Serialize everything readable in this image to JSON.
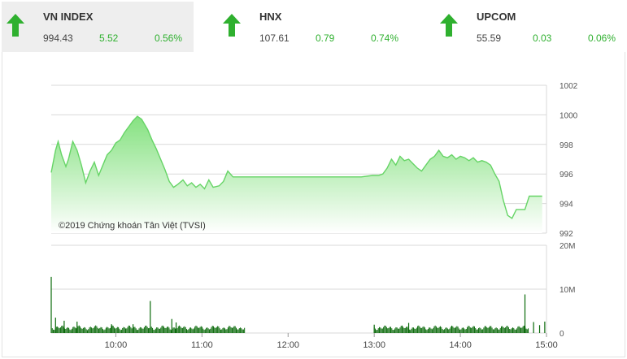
{
  "indices": [
    {
      "name": "VN INDEX",
      "value": "994.43",
      "change": "5.52",
      "percent": "0.56%",
      "direction": "up",
      "active": true
    },
    {
      "name": "HNX",
      "value": "107.61",
      "change": "0.79",
      "percent": "0.74%",
      "direction": "up",
      "active": false
    },
    {
      "name": "UPCOM",
      "value": "55.59",
      "change": "0.03",
      "percent": "0.06%",
      "direction": "up",
      "active": false
    }
  ],
  "colors": {
    "up": "#2fb02f",
    "area_top": "#7fe07a",
    "area_bottom": "#ffffff",
    "line": "#66d466",
    "volume": "#0a6a0a",
    "grid": "#d9d9d9"
  },
  "chart_data": [
    {
      "type": "area",
      "copyright": "©2019 Chứng khoán Tân Việt (TVSI)",
      "y_ticks": [
        "1002",
        "1000",
        "998",
        "996",
        "994",
        "992"
      ],
      "ylim": [
        992,
        1002
      ],
      "x_ticks": [
        "10:00",
        "11:00",
        "12:00",
        "13:00",
        "14:00",
        "15:00"
      ],
      "x_tick_hours": [
        10,
        11,
        12,
        13,
        14,
        15
      ],
      "xlim": [
        9.25,
        15.0
      ],
      "x": [
        9.25,
        9.3,
        9.33,
        9.37,
        9.42,
        9.45,
        9.5,
        9.55,
        9.6,
        9.65,
        9.7,
        9.75,
        9.8,
        9.85,
        9.9,
        9.95,
        10.0,
        10.05,
        10.1,
        10.15,
        10.2,
        10.25,
        10.3,
        10.33,
        10.37,
        10.42,
        10.47,
        10.52,
        10.57,
        10.62,
        10.67,
        10.72,
        10.78,
        10.83,
        10.88,
        10.93,
        10.98,
        11.03,
        11.08,
        11.13,
        11.2,
        11.25,
        11.3,
        11.33,
        11.36,
        11.4,
        11.45,
        12.0,
        12.5,
        12.85,
        12.98,
        13.05,
        13.1,
        13.15,
        13.2,
        13.25,
        13.3,
        13.35,
        13.4,
        13.45,
        13.5,
        13.55,
        13.6,
        13.65,
        13.7,
        13.75,
        13.8,
        13.85,
        13.9,
        13.95,
        14.0,
        14.05,
        14.1,
        14.15,
        14.2,
        14.25,
        14.3,
        14.35,
        14.4,
        14.45,
        14.5,
        14.55,
        14.6,
        14.65,
        14.75,
        14.8,
        14.95
      ],
      "y": [
        996.1,
        997.6,
        998.2,
        997.3,
        996.5,
        997.0,
        998.2,
        997.6,
        996.6,
        995.4,
        996.2,
        996.8,
        995.9,
        996.6,
        997.3,
        997.6,
        998.1,
        998.3,
        998.8,
        999.2,
        999.6,
        999.9,
        999.7,
        999.4,
        999.0,
        998.3,
        997.7,
        997.0,
        996.3,
        995.5,
        995.1,
        995.3,
        995.6,
        995.2,
        995.4,
        995.1,
        995.3,
        995.0,
        995.6,
        995.1,
        995.2,
        995.5,
        996.2,
        996.0,
        995.8,
        995.8,
        995.8,
        995.8,
        995.8,
        995.8,
        995.9,
        995.9,
        996.0,
        996.4,
        997.0,
        996.6,
        997.2,
        996.9,
        997.0,
        996.7,
        996.4,
        996.2,
        996.6,
        997.0,
        997.2,
        997.6,
        997.2,
        997.1,
        997.3,
        997.0,
        997.2,
        997.1,
        996.9,
        997.1,
        996.8,
        996.9,
        996.8,
        996.6,
        996.0,
        995.5,
        994.2,
        993.2,
        993.0,
        993.6,
        993.6,
        994.5,
        994.5
      ]
    },
    {
      "type": "bar",
      "y_ticks": [
        "20M",
        "10M",
        "0"
      ],
      "ylim_millions": [
        0,
        20
      ],
      "xlim": [
        9.25,
        15.0
      ],
      "morning_session": [
        9.25,
        11.5
      ],
      "afternoon_session": [
        13.0,
        14.8
      ],
      "base_volume_millions": 1.2,
      "spikes": [
        {
          "time": 9.25,
          "volume_millions": 12.8
        },
        {
          "time": 9.3,
          "volume_millions": 3.5
        },
        {
          "time": 9.4,
          "volume_millions": 2.8
        },
        {
          "time": 9.55,
          "volume_millions": 2.6
        },
        {
          "time": 9.95,
          "volume_millions": 2.0
        },
        {
          "time": 10.2,
          "volume_millions": 2.0
        },
        {
          "time": 10.4,
          "volume_millions": 7.3
        },
        {
          "time": 10.65,
          "volume_millions": 3.2
        },
        {
          "time": 10.7,
          "volume_millions": 2.4
        },
        {
          "time": 13.0,
          "volume_millions": 1.9
        },
        {
          "time": 13.4,
          "volume_millions": 2.3
        },
        {
          "time": 14.75,
          "volume_millions": 8.8
        },
        {
          "time": 14.85,
          "volume_millions": 2.5
        }
      ],
      "closing_spikes": [
        {
          "time": 14.92,
          "volume_millions": 1.8
        },
        {
          "time": 14.98,
          "volume_millions": 2.6
        }
      ]
    }
  ]
}
